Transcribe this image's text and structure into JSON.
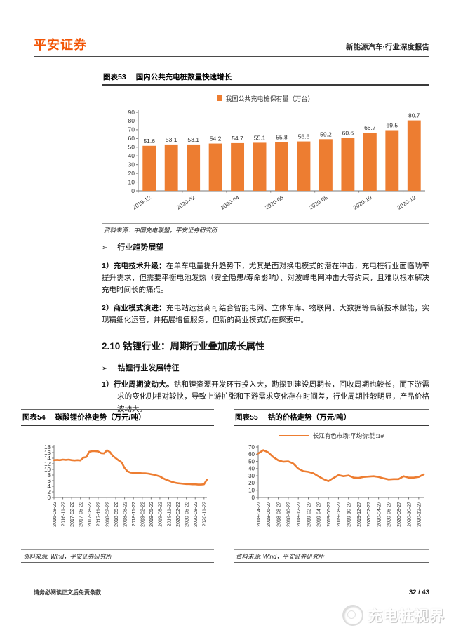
{
  "header": {
    "logo": "平安证券",
    "report_title": "新能源汽车·行业深度报告"
  },
  "figures": {
    "fig53": {
      "label": "图表53",
      "title": "国内公共充电桩数量快速增长",
      "legend": "我国公共充电桩保有量（万台）",
      "source": "资料来源：中国充电联盟，平安证券研究所"
    },
    "fig54": {
      "label": "图表54",
      "title": "碳酸锂价格走势（万元/吨）",
      "source": "资料来源: Wind，平安证券研究所"
    },
    "fig55": {
      "label": "图表55",
      "title": "钴的价格走势（万元/吨）",
      "legend": "长江有色市场:平均价:钴:1#",
      "source": "资料来源: Wind，平安证券研究所"
    }
  },
  "sections": {
    "trend_outlook": {
      "bullet": "➢",
      "heading": "行业趋势展望",
      "para1_lead": "1）充电技术升级：",
      "para1_body": "在单车电量提升趋势下，尤其是面对换电模式的潜在冲击，充电桩行业面临功率提升需求，但需要平衡电池发热（安全隐患/寿命影响）、对波峰电网冲击大等约束，且难以根本解决充电时间长的痛点。",
      "para2_lead": "2）商业模式演进：",
      "para2_body": "充电站运营商可结合智能电网、立体车库、物联网、大数据等高新技术赋能，实现精细化运营，并拓展增值服务，但新的商业模式仍在探索中。"
    },
    "cobalt": {
      "number_heading": "2.10 钴锂行业：周期行业叠加成长属性",
      "bullet": "➢",
      "sub_heading": "钴锂行业发展特征",
      "item_lead": "1）行业周期波动大。",
      "item_body": "钴和锂资源开发环节投入大，勘探到建设周期长，回收周期也较长，而下游需求的变化则相对较快，导致上游扩张和下游需求变化存在时间差，行业周期性较明显，产品价格波动大。"
    }
  },
  "footer": {
    "disclaimer": "请务必阅读正文后免责条款",
    "page_number": "32 / 43"
  },
  "watermark": {
    "text": "充电桩视界"
  },
  "colors": {
    "brand_orange": "#F25405",
    "chart_orange": "#ED7D31"
  },
  "chart_data": [
    {
      "type": "bar",
      "title": "国内公共充电桩数量快速增长",
      "legend": "我国公共充电桩保有量（万台）",
      "ylabel": "万台",
      "categories": [
        "2019-12",
        "2020-01",
        "2020-02",
        "2020-03",
        "2020-04",
        "2020-05",
        "2020-06",
        "2020-07",
        "2020-08",
        "2020-09",
        "2020-10",
        "2020-11",
        "2020-12"
      ],
      "values": [
        51.6,
        53.1,
        53.1,
        54.2,
        54.7,
        55.1,
        55.8,
        56.6,
        59.2,
        60.6,
        66.7,
        69.5,
        80.7
      ],
      "x_labels_shown": [
        "2019-12",
        "2020-02",
        "2020-04",
        "2020-06",
        "2020-08",
        "2020-10",
        "2020-12"
      ],
      "x_labels_every": 2,
      "ylim": [
        0,
        90
      ],
      "y_step": 10,
      "grid": false,
      "legend_position": "top",
      "color": "#ED7D31"
    },
    {
      "type": "line",
      "title": "碳酸锂价格走势（万元/吨）",
      "x_tick_labels": [
        "2016-08-22",
        "2016-11-22",
        "2017-02-22",
        "2017-05-22",
        "2017-08-22",
        "2017-11-22",
        "2018-02-22",
        "2018-05-22",
        "2018-08-22",
        "2018-11-22",
        "2019-02-22",
        "2019-05-22",
        "2019-08-22",
        "2019-11-22",
        "2020-02-22",
        "2020-05-22",
        "2020-08-22",
        "2020-11-22"
      ],
      "tick_step": 3,
      "values": [
        13.3,
        13.4,
        13.3,
        13.5,
        13.4,
        13.5,
        13.3,
        13.2,
        13.3,
        13.2,
        14.2,
        14.4,
        16.3,
        16.5,
        16.5,
        16.4,
        15.8,
        15.7,
        16.8,
        16.2,
        14.8,
        14.0,
        13.2,
        12.5,
        10.5,
        9.3,
        8.9,
        8.8,
        8.7,
        8.7,
        8.6,
        8.6,
        8.5,
        8.3,
        8.1,
        7.8,
        7.5,
        6.9,
        6.4,
        6.0,
        5.6,
        5.3,
        5.1,
        5.0,
        4.9,
        4.8,
        4.8,
        4.7,
        4.7,
        4.6,
        4.6,
        4.7,
        6.4
      ],
      "ylim": [
        0,
        18
      ],
      "y_step": 2,
      "grid": false,
      "color": "#ED7D31"
    },
    {
      "type": "line",
      "title": "钴的价格走势（万元/吨）",
      "legend": "长江有色市场:平均价:钴:1#",
      "x_tick_labels": [
        "2018-04-27",
        "2018-06-27",
        "2018-08-27",
        "2018-10-27",
        "2018-12-27",
        "2019-02-27",
        "2019-04-27",
        "2019-06-27",
        "2019-08-27",
        "2019-10-27",
        "2019-12-27",
        "2020-02-27",
        "2020-04-27",
        "2020-06-27",
        "2020-08-27",
        "2020-10-27",
        "2020-12-27"
      ],
      "tick_step": 2,
      "values": [
        61,
        65.5,
        62.5,
        56,
        51.5,
        49.5,
        50,
        47,
        40,
        36.5,
        35.5,
        33.5,
        29.5,
        25.5,
        22.7,
        27,
        31,
        29.5,
        30.5,
        27.5,
        27,
        28.5,
        29,
        29.5,
        28.5,
        26.5,
        25,
        25.5,
        25.5,
        29.5,
        27.5,
        27.5,
        28.5,
        32
      ],
      "ylim": [
        0,
        70
      ],
      "y_step": 10,
      "grid": false,
      "legend_position": "top",
      "color": "#ED7D31"
    }
  ]
}
